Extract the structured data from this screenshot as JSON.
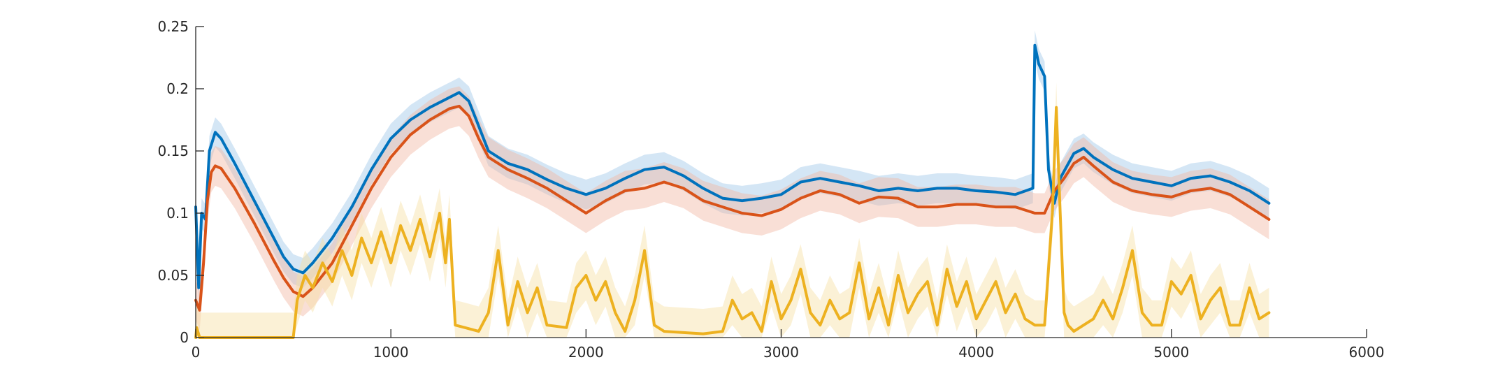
{
  "chart_data": {
    "type": "line",
    "title": "",
    "xlabel": "",
    "ylabel": "",
    "xlim": [
      0,
      6000
    ],
    "ylim": [
      0,
      0.25
    ],
    "grid": false,
    "legend": "none",
    "x_ticks": [
      {
        "value": 0,
        "label": "0"
      },
      {
        "value": 1000,
        "label": "1000"
      },
      {
        "value": 2000,
        "label": "2000"
      },
      {
        "value": 3000,
        "label": "3000"
      },
      {
        "value": 4000,
        "label": "4000"
      },
      {
        "value": 5000,
        "label": "5000"
      },
      {
        "value": 6000,
        "label": "6000"
      }
    ],
    "y_ticks": [
      {
        "value": 0,
        "label": "0"
      },
      {
        "value": 0.05,
        "label": "0.05"
      },
      {
        "value": 0.1,
        "label": "0.1"
      },
      {
        "value": 0.15,
        "label": "0.15"
      },
      {
        "value": 0.2,
        "label": "0.2"
      },
      {
        "value": 0.25,
        "label": "0.25"
      }
    ],
    "series": [
      {
        "color": "#0072BD",
        "band_color": "#9FC7E8",
        "band_halfwidth": 0.012,
        "points": [
          [
            0,
            0.105
          ],
          [
            15,
            0.04
          ],
          [
            30,
            0.1
          ],
          [
            50,
            0.095
          ],
          [
            70,
            0.15
          ],
          [
            100,
            0.165
          ],
          [
            130,
            0.16
          ],
          [
            200,
            0.14
          ],
          [
            300,
            0.11
          ],
          [
            400,
            0.08
          ],
          [
            450,
            0.065
          ],
          [
            500,
            0.055
          ],
          [
            550,
            0.052
          ],
          [
            600,
            0.06
          ],
          [
            700,
            0.08
          ],
          [
            800,
            0.105
          ],
          [
            900,
            0.135
          ],
          [
            1000,
            0.16
          ],
          [
            1100,
            0.175
          ],
          [
            1200,
            0.185
          ],
          [
            1300,
            0.193
          ],
          [
            1350,
            0.197
          ],
          [
            1400,
            0.19
          ],
          [
            1450,
            0.17
          ],
          [
            1500,
            0.15
          ],
          [
            1600,
            0.14
          ],
          [
            1700,
            0.135
          ],
          [
            1800,
            0.127
          ],
          [
            1900,
            0.12
          ],
          [
            2000,
            0.115
          ],
          [
            2100,
            0.12
          ],
          [
            2200,
            0.128
          ],
          [
            2300,
            0.135
          ],
          [
            2400,
            0.137
          ],
          [
            2500,
            0.13
          ],
          [
            2600,
            0.12
          ],
          [
            2700,
            0.112
          ],
          [
            2800,
            0.11
          ],
          [
            2900,
            0.112
          ],
          [
            3000,
            0.115
          ],
          [
            3100,
            0.125
          ],
          [
            3200,
            0.128
          ],
          [
            3300,
            0.125
          ],
          [
            3400,
            0.122
          ],
          [
            3500,
            0.118
          ],
          [
            3600,
            0.12
          ],
          [
            3700,
            0.118
          ],
          [
            3800,
            0.12
          ],
          [
            3900,
            0.12
          ],
          [
            4000,
            0.118
          ],
          [
            4100,
            0.117
          ],
          [
            4200,
            0.115
          ],
          [
            4290,
            0.12
          ],
          [
            4300,
            0.235
          ],
          [
            4320,
            0.22
          ],
          [
            4350,
            0.21
          ],
          [
            4370,
            0.135
          ],
          [
            4400,
            0.108
          ],
          [
            4430,
            0.128
          ],
          [
            4500,
            0.148
          ],
          [
            4550,
            0.152
          ],
          [
            4600,
            0.145
          ],
          [
            4700,
            0.135
          ],
          [
            4800,
            0.128
          ],
          [
            4900,
            0.125
          ],
          [
            5000,
            0.122
          ],
          [
            5100,
            0.128
          ],
          [
            5200,
            0.13
          ],
          [
            5300,
            0.125
          ],
          [
            5400,
            0.118
          ],
          [
            5500,
            0.108
          ]
        ]
      },
      {
        "color": "#D95319",
        "band_color": "#F2B8A4",
        "band_halfwidth": 0.016,
        "points": [
          [
            0,
            0.03
          ],
          [
            20,
            0.022
          ],
          [
            40,
            0.06
          ],
          [
            60,
            0.11
          ],
          [
            80,
            0.133
          ],
          [
            100,
            0.138
          ],
          [
            130,
            0.136
          ],
          [
            200,
            0.12
          ],
          [
            300,
            0.092
          ],
          [
            400,
            0.062
          ],
          [
            450,
            0.048
          ],
          [
            500,
            0.037
          ],
          [
            550,
            0.033
          ],
          [
            600,
            0.04
          ],
          [
            700,
            0.06
          ],
          [
            800,
            0.09
          ],
          [
            900,
            0.12
          ],
          [
            1000,
            0.145
          ],
          [
            1100,
            0.163
          ],
          [
            1200,
            0.175
          ],
          [
            1300,
            0.184
          ],
          [
            1350,
            0.186
          ],
          [
            1400,
            0.178
          ],
          [
            1450,
            0.16
          ],
          [
            1500,
            0.145
          ],
          [
            1600,
            0.135
          ],
          [
            1700,
            0.128
          ],
          [
            1800,
            0.12
          ],
          [
            1900,
            0.11
          ],
          [
            2000,
            0.1
          ],
          [
            2100,
            0.11
          ],
          [
            2200,
            0.118
          ],
          [
            2300,
            0.12
          ],
          [
            2400,
            0.125
          ],
          [
            2500,
            0.12
          ],
          [
            2600,
            0.11
          ],
          [
            2700,
            0.105
          ],
          [
            2800,
            0.1
          ],
          [
            2900,
            0.098
          ],
          [
            3000,
            0.103
          ],
          [
            3100,
            0.112
          ],
          [
            3200,
            0.118
          ],
          [
            3300,
            0.115
          ],
          [
            3400,
            0.108
          ],
          [
            3500,
            0.113
          ],
          [
            3600,
            0.112
          ],
          [
            3700,
            0.105
          ],
          [
            3800,
            0.105
          ],
          [
            3900,
            0.107
          ],
          [
            4000,
            0.107
          ],
          [
            4100,
            0.105
          ],
          [
            4200,
            0.105
          ],
          [
            4300,
            0.1
          ],
          [
            4350,
            0.1
          ],
          [
            4400,
            0.118
          ],
          [
            4450,
            0.128
          ],
          [
            4500,
            0.14
          ],
          [
            4550,
            0.145
          ],
          [
            4600,
            0.138
          ],
          [
            4700,
            0.125
          ],
          [
            4800,
            0.118
          ],
          [
            4900,
            0.115
          ],
          [
            5000,
            0.113
          ],
          [
            5100,
            0.118
          ],
          [
            5200,
            0.12
          ],
          [
            5300,
            0.115
          ],
          [
            5400,
            0.105
          ],
          [
            5500,
            0.095
          ]
        ]
      },
      {
        "color": "#EDB120",
        "band_color": "#F6DFA3",
        "band_halfwidth": 0.02,
        "points": [
          [
            0,
            0.0
          ],
          [
            5,
            0.008
          ],
          [
            20,
            0.0
          ],
          [
            500,
            0.0
          ],
          [
            520,
            0.03
          ],
          [
            560,
            0.05
          ],
          [
            600,
            0.04
          ],
          [
            650,
            0.06
          ],
          [
            700,
            0.045
          ],
          [
            750,
            0.07
          ],
          [
            800,
            0.05
          ],
          [
            850,
            0.08
          ],
          [
            900,
            0.06
          ],
          [
            950,
            0.085
          ],
          [
            1000,
            0.06
          ],
          [
            1050,
            0.09
          ],
          [
            1100,
            0.07
          ],
          [
            1150,
            0.095
          ],
          [
            1200,
            0.065
          ],
          [
            1250,
            0.1
          ],
          [
            1280,
            0.06
          ],
          [
            1300,
            0.095
          ],
          [
            1330,
            0.01
          ],
          [
            1380,
            0.008
          ],
          [
            1450,
            0.005
          ],
          [
            1500,
            0.02
          ],
          [
            1550,
            0.07
          ],
          [
            1600,
            0.01
          ],
          [
            1650,
            0.045
          ],
          [
            1700,
            0.02
          ],
          [
            1750,
            0.04
          ],
          [
            1800,
            0.01
          ],
          [
            1900,
            0.008
          ],
          [
            1950,
            0.04
          ],
          [
            2000,
            0.05
          ],
          [
            2050,
            0.03
          ],
          [
            2100,
            0.045
          ],
          [
            2150,
            0.02
          ],
          [
            2200,
            0.005
          ],
          [
            2250,
            0.03
          ],
          [
            2300,
            0.07
          ],
          [
            2350,
            0.01
          ],
          [
            2400,
            0.005
          ],
          [
            2500,
            0.004
          ],
          [
            2600,
            0.003
          ],
          [
            2700,
            0.005
          ],
          [
            2750,
            0.03
          ],
          [
            2800,
            0.015
          ],
          [
            2850,
            0.02
          ],
          [
            2900,
            0.005
          ],
          [
            2950,
            0.045
          ],
          [
            3000,
            0.015
          ],
          [
            3050,
            0.03
          ],
          [
            3100,
            0.055
          ],
          [
            3150,
            0.02
          ],
          [
            3200,
            0.01
          ],
          [
            3250,
            0.03
          ],
          [
            3300,
            0.015
          ],
          [
            3350,
            0.02
          ],
          [
            3400,
            0.06
          ],
          [
            3450,
            0.015
          ],
          [
            3500,
            0.04
          ],
          [
            3550,
            0.01
          ],
          [
            3600,
            0.05
          ],
          [
            3650,
            0.02
          ],
          [
            3700,
            0.035
          ],
          [
            3750,
            0.045
          ],
          [
            3800,
            0.01
          ],
          [
            3850,
            0.055
          ],
          [
            3900,
            0.025
          ],
          [
            3950,
            0.045
          ],
          [
            4000,
            0.015
          ],
          [
            4050,
            0.03
          ],
          [
            4100,
            0.045
          ],
          [
            4150,
            0.02
          ],
          [
            4200,
            0.035
          ],
          [
            4250,
            0.015
          ],
          [
            4300,
            0.01
          ],
          [
            4350,
            0.01
          ],
          [
            4390,
            0.1
          ],
          [
            4410,
            0.185
          ],
          [
            4430,
            0.1
          ],
          [
            4450,
            0.02
          ],
          [
            4470,
            0.01
          ],
          [
            4500,
            0.005
          ],
          [
            4600,
            0.015
          ],
          [
            4650,
            0.03
          ],
          [
            4700,
            0.015
          ],
          [
            4750,
            0.04
          ],
          [
            4800,
            0.07
          ],
          [
            4850,
            0.02
          ],
          [
            4900,
            0.01
          ],
          [
            4950,
            0.01
          ],
          [
            5000,
            0.045
          ],
          [
            5050,
            0.035
          ],
          [
            5100,
            0.05
          ],
          [
            5150,
            0.015
          ],
          [
            5200,
            0.03
          ],
          [
            5250,
            0.04
          ],
          [
            5300,
            0.01
          ],
          [
            5350,
            0.01
          ],
          [
            5400,
            0.04
          ],
          [
            5450,
            0.015
          ],
          [
            5500,
            0.02
          ]
        ]
      }
    ]
  }
}
